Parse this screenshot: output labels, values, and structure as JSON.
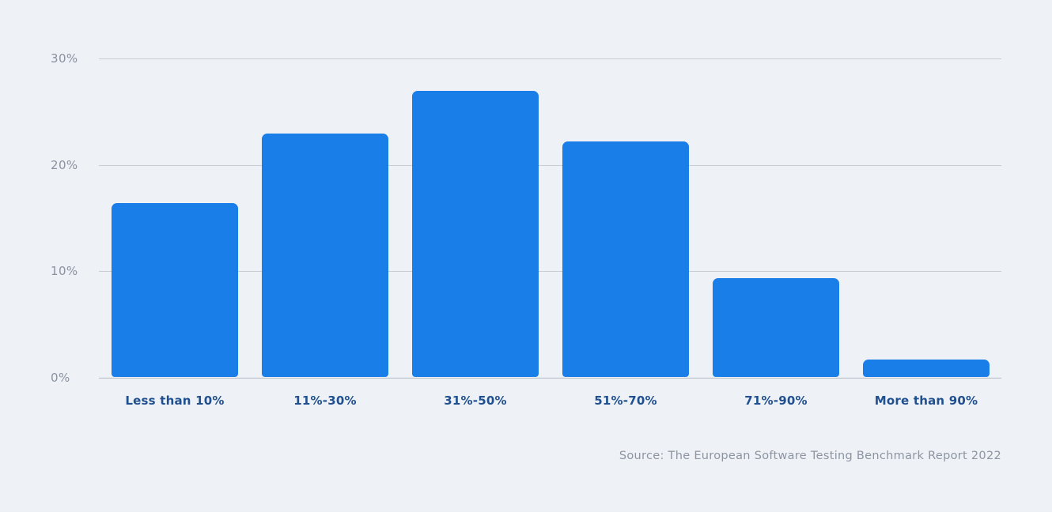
{
  "chart_data": {
    "type": "bar",
    "title": "",
    "xlabel": "",
    "ylabel": "",
    "categories": [
      "Less than 10%",
      "11%-30%",
      "31%-50%",
      "51%-70%",
      "71%-90%",
      "More than 90%"
    ],
    "values": [
      16.3,
      22.9,
      26.9,
      22.1,
      9.3,
      1.6
    ],
    "ylim": [
      0,
      30
    ],
    "yticks": [
      {
        "label": "0%",
        "value": 0
      },
      {
        "label": "10%",
        "value": 10
      },
      {
        "label": "20%",
        "value": 20
      },
      {
        "label": "30%",
        "value": 30
      }
    ],
    "grid": true,
    "legend": "none",
    "source_note": "Source: The European Software Testing Benchmark Report 2022"
  },
  "colors": {
    "background": "#eef1f5",
    "bar": "#1a7ee8",
    "gridline": "#c7ccd5",
    "axis_line": "#b3b9c3",
    "tick_label": "#8a92a1",
    "category_label": "#20508f",
    "source_text": "#8d95a2",
    "bottom_strip": "#ffffff"
  }
}
